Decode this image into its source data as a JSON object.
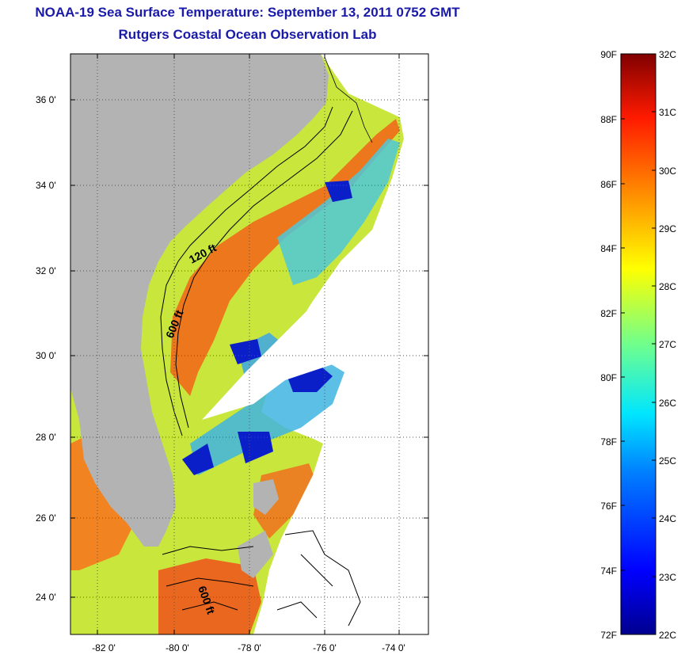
{
  "title": {
    "line1": "NOAA-19 Sea Surface Temperature:  September 13, 2011 0752 GMT",
    "line2": "Rutgers Coastal Ocean Observation Lab"
  },
  "colors": {
    "title": "#1a1aa8",
    "land": "#b3b3b3",
    "cloud": "#ffffff",
    "contour": "#000000"
  },
  "map": {
    "lat_ticks": [
      "36 0'",
      "34 0'",
      "32 0'",
      "30 0'",
      "28 0'",
      "26 0'",
      "24 0'"
    ],
    "lon_ticks": [
      "-82 0'",
      "-80 0'",
      "-78 0'",
      "-76 0'",
      "-74 0'"
    ],
    "lat_values": [
      36,
      34,
      32,
      30,
      28,
      26,
      24
    ],
    "lon_values": [
      -82,
      -80,
      -78,
      -76,
      -74
    ],
    "lat_range": [
      23,
      37.1
    ],
    "lon_range": [
      -83,
      -73
    ],
    "grid": "dotted",
    "contour_labels": [
      "120 ft",
      "600 ft",
      "600 ft"
    ]
  },
  "colorbar": {
    "fahrenheit_labels": [
      "90F",
      "88F",
      "86F",
      "84F",
      "82F",
      "80F",
      "78F",
      "76F",
      "74F",
      "72F"
    ],
    "celsius_labels": [
      "32C",
      "31C",
      "30C",
      "29C",
      "28C",
      "27C",
      "26C",
      "25C",
      "24C",
      "23C",
      "22C"
    ],
    "range_c": [
      22,
      32
    ],
    "range_f": [
      72,
      90
    ]
  }
}
